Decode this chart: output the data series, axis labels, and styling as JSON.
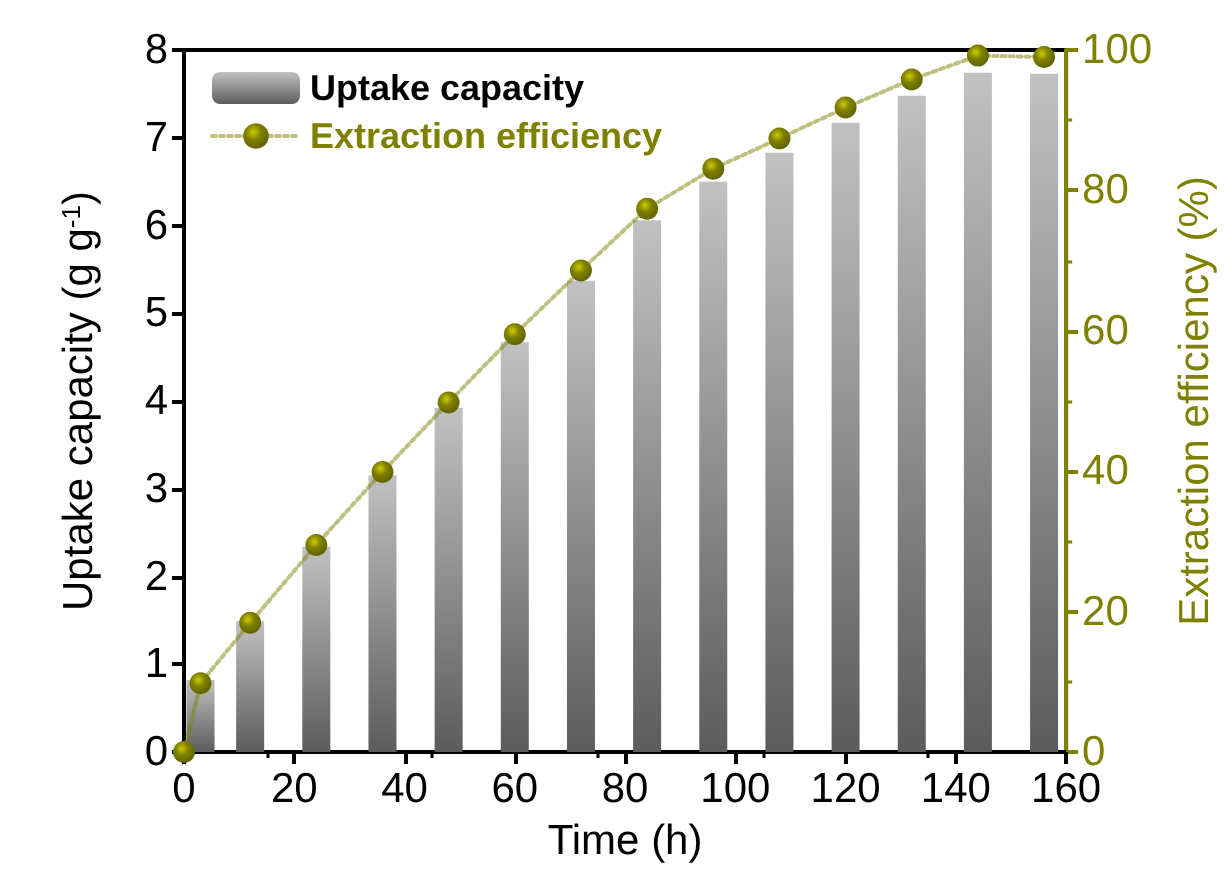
{
  "chart_data": {
    "type": "bar",
    "xlabel": "Time (h)",
    "ylabel": "Uptake capacity (g g$^{-1}$)",
    "y2label": "Extraction efficiency (%)",
    "xlim": [
      0,
      160
    ],
    "xticks": [
      0,
      20,
      40,
      60,
      80,
      100,
      120,
      140,
      160
    ],
    "ylim": [
      0,
      8
    ],
    "yticks": [
      0,
      1,
      2,
      3,
      4,
      5,
      6,
      7,
      8
    ],
    "y2lim": [
      0,
      100
    ],
    "y2ticks": [
      0,
      20,
      40,
      60,
      80,
      100
    ],
    "series": [
      {
        "name": "Uptake capacity",
        "color": "#9a9a9a",
        "x": [
          3,
          12,
          24,
          36,
          48,
          60,
          72,
          84,
          96,
          108,
          120,
          132,
          144,
          156
        ],
        "values": [
          0.82,
          1.49,
          2.34,
          3.15,
          3.92,
          4.67,
          5.37,
          6.06,
          6.5,
          6.83,
          7.17,
          7.48,
          7.74,
          7.73
        ]
      },
      {
        "name": "Extraction efficiency",
        "type": "line",
        "axis": "y2",
        "color": "#808000",
        "marker": "circle",
        "line_style": "dotted",
        "x": [
          0,
          3,
          12,
          24,
          36,
          48,
          60,
          72,
          84,
          96,
          108,
          120,
          132,
          144,
          156
        ],
        "values": [
          0,
          9.8,
          18.4,
          29.5,
          39.9,
          49.8,
          59.5,
          68.6,
          77.4,
          83.1,
          87.4,
          91.8,
          95.8,
          99.2,
          99.0
        ]
      }
    ],
    "grid": false,
    "legend": "top left"
  }
}
